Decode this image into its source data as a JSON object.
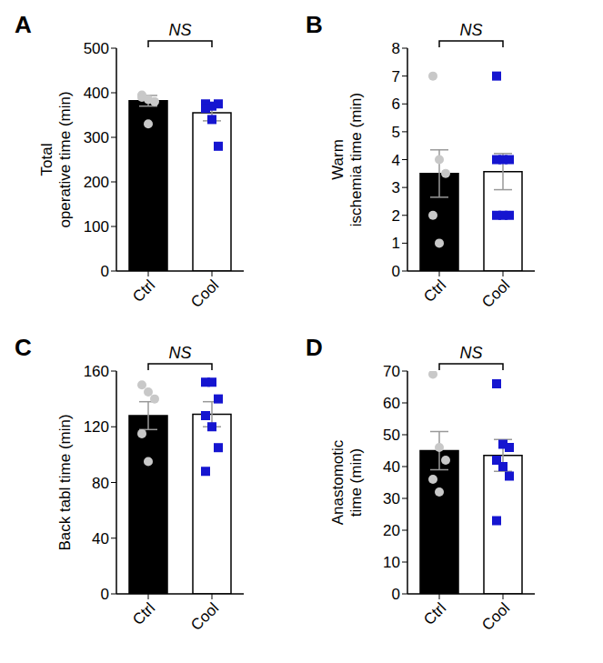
{
  "chart_data": [
    {
      "type": "bar",
      "panel": "A",
      "y_label": [
        "Total",
        "operative time (min)"
      ],
      "categories": [
        "Ctrl",
        "Cool"
      ],
      "values": [
        382,
        355
      ],
      "errors": [
        12,
        18
      ],
      "colors": [
        "#000000",
        "#ffffff"
      ],
      "points": [
        {
          "category": "Ctrl",
          "values": [
            395,
            385,
            380,
            390,
            330
          ],
          "color": "#c8c8c8",
          "marker": "circle"
        },
        {
          "category": "Cool",
          "values": [
            375,
            370,
            375,
            365,
            340,
            280
          ],
          "color": "#1515d0",
          "marker": "square"
        }
      ],
      "ylim": [
        0,
        500
      ],
      "yticks": [
        0,
        100,
        200,
        300,
        400,
        500
      ],
      "annotation": "NS"
    },
    {
      "type": "bar",
      "panel": "B",
      "y_label": [
        "Warm",
        "ischemia time (min)"
      ],
      "categories": [
        "Ctrl",
        "Cool"
      ],
      "values": [
        3.5,
        3.57
      ],
      "errors": [
        0.85,
        0.65
      ],
      "colors": [
        "#000000",
        "#ffffff"
      ],
      "points": [
        {
          "category": "Ctrl",
          "values": [
            7,
            4,
            3.5,
            2,
            1
          ],
          "color": "#c8c8c8",
          "marker": "circle"
        },
        {
          "category": "Cool",
          "values": [
            7,
            4,
            4,
            4,
            2,
            2,
            2
          ],
          "color": "#1515d0",
          "marker": "square"
        }
      ],
      "ylim": [
        0,
        8
      ],
      "yticks": [
        0,
        1,
        2,
        3,
        4,
        5,
        6,
        7,
        8
      ],
      "annotation": "NS"
    },
    {
      "type": "bar",
      "panel": "C",
      "y_label": [
        "Back tabl time (min)"
      ],
      "categories": [
        "Ctrl",
        "Cool"
      ],
      "values": [
        128,
        129
      ],
      "errors": [
        10,
        9
      ],
      "colors": [
        "#000000",
        "#ffffff"
      ],
      "points": [
        {
          "category": "Ctrl",
          "values": [
            150,
            145,
            140,
            115,
            95
          ],
          "color": "#c8c8c8",
          "marker": "circle"
        },
        {
          "category": "Cool",
          "values": [
            152,
            152,
            140,
            128,
            120,
            105,
            88
          ],
          "color": "#1515d0",
          "marker": "square"
        }
      ],
      "ylim": [
        0,
        160
      ],
      "yticks": [
        0,
        40,
        80,
        120,
        160
      ],
      "annotation": "NS"
    },
    {
      "type": "bar",
      "panel": "D",
      "y_label": [
        "Anastomotic",
        "time (min)"
      ],
      "categories": [
        "Ctrl",
        "Cool"
      ],
      "values": [
        45,
        43.5
      ],
      "errors": [
        6,
        5
      ],
      "colors": [
        "#000000",
        "#ffffff"
      ],
      "points": [
        {
          "category": "Ctrl",
          "values": [
            69,
            46,
            42,
            36,
            32
          ],
          "color": "#c8c8c8",
          "marker": "circle"
        },
        {
          "category": "Cool",
          "values": [
            66,
            47,
            46,
            42,
            40,
            37,
            23
          ],
          "color": "#1515d0",
          "marker": "square"
        }
      ],
      "ylim": [
        0,
        70
      ],
      "yticks": [
        0,
        10,
        20,
        30,
        40,
        50,
        60,
        70
      ],
      "annotation": "NS"
    }
  ]
}
